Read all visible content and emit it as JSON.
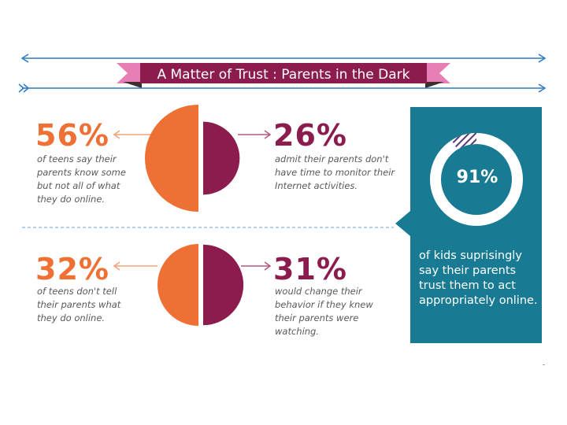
{
  "title": "A Matter of Trust : Parents in the Dark",
  "colors": {
    "orange": "#ef7034",
    "plum": "#8c1c4e",
    "teal": "#187a93",
    "banner": "#8c1c4e",
    "pink": "#e77fb4",
    "arrow_blue": "#2d78c0",
    "hatch": "#5a3a7a"
  },
  "stats": {
    "row1_left": {
      "value": "56%",
      "caption": "of teens say their\nparents know some\nbut not all of what\nthey do online."
    },
    "row1_right": {
      "value": "26%",
      "caption": "admit their parents don't\nhave time to monitor their\nInternet activities."
    },
    "row2_left": {
      "value": "32%",
      "caption": "of teens don't tell\ntheir parents what\nthey do online."
    },
    "row2_right": {
      "value": "31%",
      "caption": "would change their\nbehavior if they knew\ntheir parents were\nwatching."
    },
    "panel": {
      "value": "91%",
      "caption": "of kids suprisingly\nsay their parents\ntrust them to act\nappropriately online."
    }
  },
  "chart_data": [
    {
      "type": "pie",
      "series": [
        {
          "values": [
            56,
            26
          ]
        }
      ],
      "value_labels": [
        "56%",
        "26%"
      ]
    },
    {
      "type": "pie",
      "series": [
        {
          "values": [
            32,
            31
          ]
        }
      ],
      "value_labels": [
        "32%",
        "31%"
      ]
    },
    {
      "type": "pie",
      "series": [
        {
          "values": [
            91,
            9
          ]
        }
      ],
      "value_labels": [
        "91%"
      ]
    }
  ]
}
